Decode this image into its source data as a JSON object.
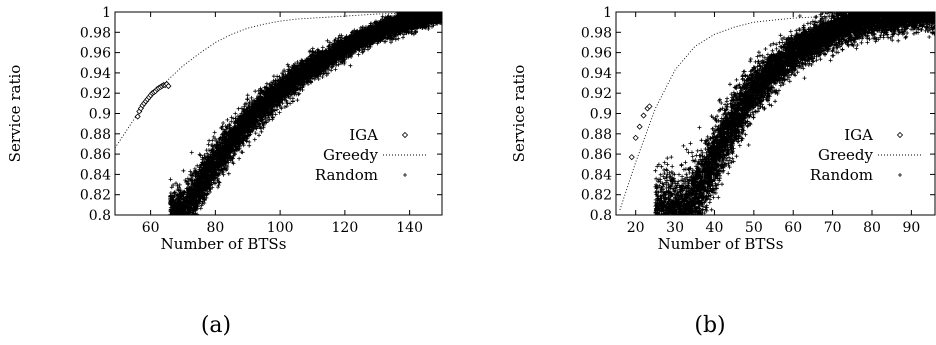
{
  "chart_data": [
    {
      "type": "scatter",
      "caption": "(a)",
      "xlabel": "Number of BTSs",
      "ylabel": "Service ratio",
      "xlim": [
        49,
        150
      ],
      "ylim": [
        0.8,
        1.0
      ],
      "xticks": [
        60,
        80,
        100,
        120,
        140
      ],
      "yticks": [
        0.8,
        0.82,
        0.84,
        0.86,
        0.88,
        0.9,
        0.92,
        0.94,
        0.96,
        0.98,
        1
      ],
      "legend_position": "right",
      "series": [
        {
          "name": "IGA",
          "style": "diamond-points",
          "points": [
            [
              56,
              0.897
            ],
            [
              56.5,
              0.902
            ],
            [
              57,
              0.905
            ],
            [
              57.5,
              0.908
            ],
            [
              58,
              0.91
            ],
            [
              58.5,
              0.912
            ],
            [
              59,
              0.914
            ],
            [
              59.5,
              0.916
            ],
            [
              60,
              0.918
            ],
            [
              60.5,
              0.92
            ],
            [
              61,
              0.921
            ],
            [
              61.5,
              0.922
            ],
            [
              62,
              0.924
            ],
            [
              62.5,
              0.925
            ],
            [
              63,
              0.926
            ],
            [
              63.5,
              0.927
            ],
            [
              64,
              0.928
            ],
            [
              64.5,
              0.928
            ],
            [
              65,
              0.929
            ],
            [
              65.5,
              0.927
            ]
          ]
        },
        {
          "name": "Greedy",
          "style": "dotted-line",
          "points": [
            [
              49,
              0.866
            ],
            [
              55,
              0.895
            ],
            [
              60,
              0.915
            ],
            [
              65,
              0.932
            ],
            [
              70,
              0.947
            ],
            [
              75,
              0.959
            ],
            [
              80,
              0.97
            ],
            [
              85,
              0.978
            ],
            [
              90,
              0.984
            ],
            [
              95,
              0.988
            ],
            [
              100,
              0.991
            ],
            [
              105,
              0.993
            ],
            [
              110,
              0.994
            ],
            [
              115,
              0.995
            ],
            [
              120,
              0.996
            ],
            [
              130,
              0.998
            ],
            [
              140,
              0.999
            ],
            [
              150,
              1.0
            ]
          ]
        },
        {
          "name": "Random",
          "style": "plus-points",
          "band": {
            "mid": [
              [
                70,
                0.8
              ],
              [
                75,
                0.828
              ],
              [
                80,
                0.853
              ],
              [
                85,
                0.873
              ],
              [
                90,
                0.892
              ],
              [
                95,
                0.908
              ],
              [
                100,
                0.922
              ],
              [
                105,
                0.935
              ],
              [
                110,
                0.946
              ],
              [
                115,
                0.956
              ],
              [
                120,
                0.965
              ],
              [
                125,
                0.973
              ],
              [
                130,
                0.98
              ],
              [
                135,
                0.986
              ],
              [
                140,
                0.992
              ],
              [
                145,
                0.996
              ],
              [
                150,
                1.0
              ]
            ],
            "xmin": 66,
            "xmax": 150,
            "spread": 0.018
          }
        }
      ]
    },
    {
      "type": "scatter",
      "caption": "(b)",
      "xlabel": "Number of BTSs",
      "ylabel": "Service ratio",
      "xlim": [
        15,
        96
      ],
      "ylim": [
        0.8,
        1.0
      ],
      "xticks": [
        20,
        30,
        40,
        50,
        60,
        70,
        80,
        90
      ],
      "yticks": [
        0.8,
        0.82,
        0.84,
        0.86,
        0.88,
        0.9,
        0.92,
        0.94,
        0.96,
        0.98,
        1
      ],
      "legend_position": "right",
      "series": [
        {
          "name": "IGA",
          "style": "diamond-points",
          "points": [
            [
              19,
              0.857
            ],
            [
              20,
              0.876
            ],
            [
              21,
              0.887
            ],
            [
              22,
              0.898
            ],
            [
              23,
              0.905
            ],
            [
              23.5,
              0.907
            ]
          ]
        },
        {
          "name": "Greedy",
          "style": "dotted-line",
          "points": [
            [
              16,
              0.805
            ],
            [
              20,
              0.852
            ],
            [
              25,
              0.905
            ],
            [
              30,
              0.943
            ],
            [
              35,
              0.966
            ],
            [
              40,
              0.978
            ],
            [
              45,
              0.985
            ],
            [
              50,
              0.99
            ],
            [
              55,
              0.992
            ],
            [
              60,
              0.994
            ],
            [
              70,
              0.996
            ],
            [
              80,
              0.998
            ],
            [
              90,
              0.999
            ],
            [
              96,
              1.0
            ]
          ]
        },
        {
          "name": "Random",
          "style": "plus-points",
          "band": {
            "mid": [
              [
                33,
                0.8
              ],
              [
                36,
                0.825
              ],
              [
                40,
                0.857
              ],
              [
                45,
                0.893
              ],
              [
                50,
                0.922
              ],
              [
                55,
                0.943
              ],
              [
                60,
                0.959
              ],
              [
                65,
                0.971
              ],
              [
                70,
                0.981
              ],
              [
                75,
                0.988
              ],
              [
                80,
                0.993
              ],
              [
                85,
                0.996
              ],
              [
                90,
                0.998
              ],
              [
                96,
                1.0
              ]
            ],
            "xmin": 25,
            "xmax": 96,
            "spread": 0.03
          }
        }
      ]
    }
  ]
}
